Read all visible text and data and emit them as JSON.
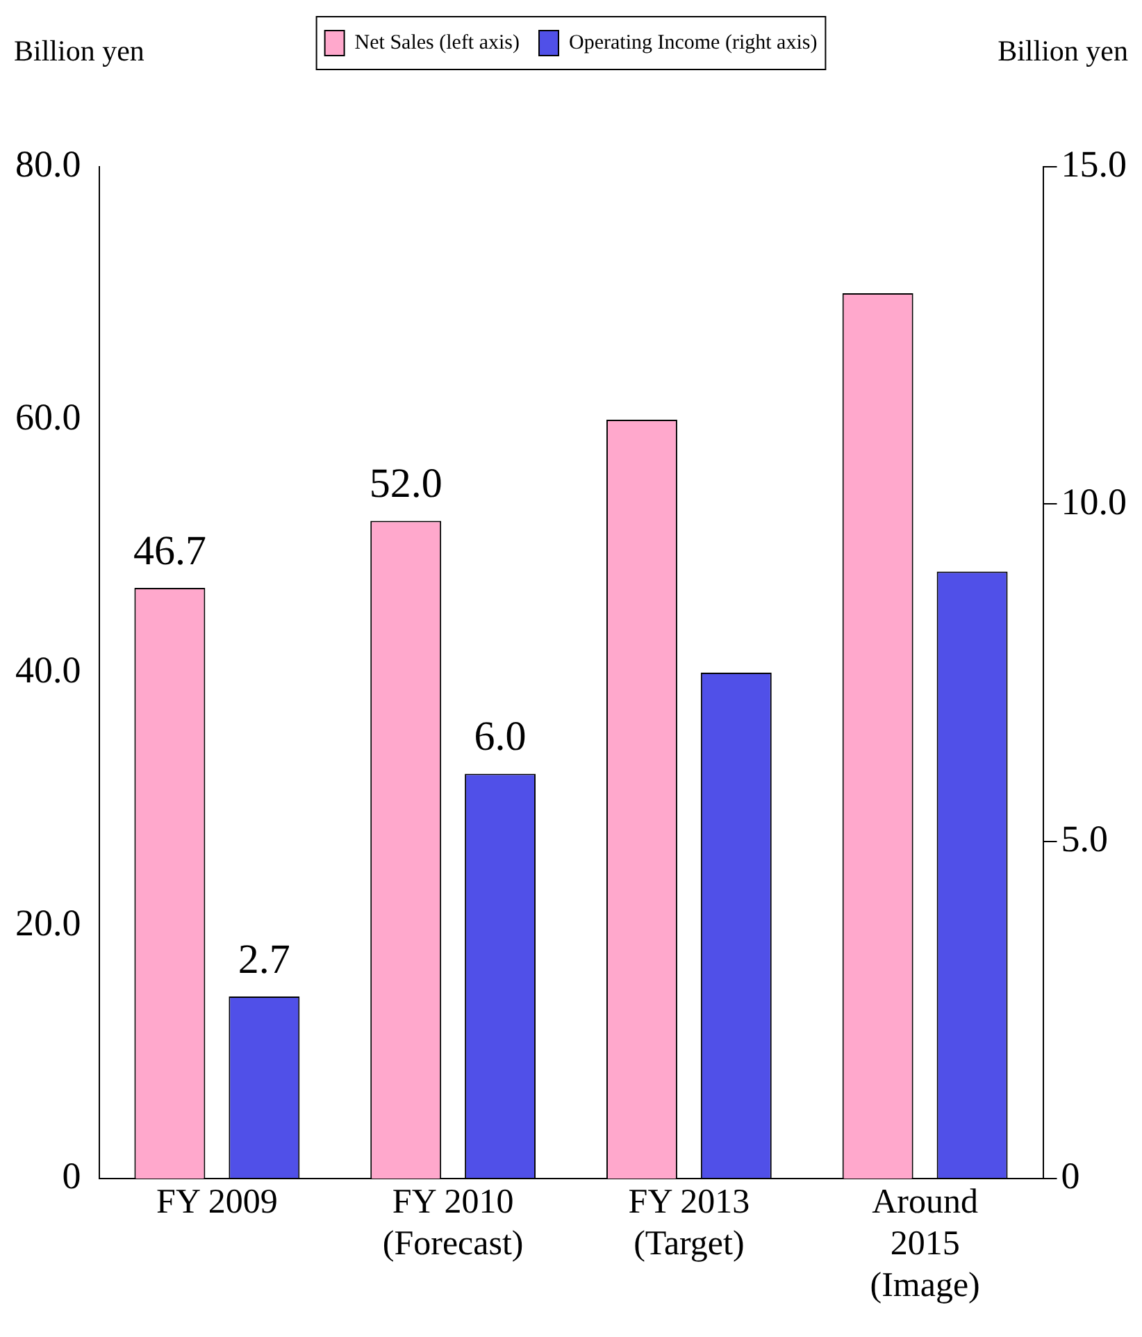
{
  "chart_data": {
    "type": "bar",
    "ylabel": "Billion yen",
    "y2label": "Billion yen",
    "categories": [
      "FY 2009",
      "FY 2010\n(Forecast)",
      "FY 2013\n(Target)",
      "Around\n2015\n(Image)"
    ],
    "series": [
      {
        "name": "Net Sales (left axis)",
        "color": "#ffa8cc",
        "values": [
          46.7,
          52.0,
          60,
          70
        ],
        "value_labels": [
          "46.7",
          "52.0",
          null,
          null
        ]
      },
      {
        "name": "Operating Income (right axis)",
        "color": "#5050e8",
        "axis": "y2",
        "values": [
          2.7,
          6.0,
          7.5,
          9.0
        ],
        "value_labels": [
          "2.7",
          "6.0",
          null,
          null
        ]
      }
    ],
    "ylim": [
      0,
      80
    ],
    "yticks": [
      {
        "value": 0,
        "label": "0"
      },
      {
        "value": 20,
        "label": "20.0"
      },
      {
        "value": 40,
        "label": "40.0"
      },
      {
        "value": 60,
        "label": "60.0"
      },
      {
        "value": 80,
        "label": "80.0"
      }
    ],
    "y2lim": [
      0,
      15
    ],
    "y2ticks": [
      {
        "value": 0,
        "label": "0"
      },
      {
        "value": 5,
        "label": "5.0"
      },
      {
        "value": 10,
        "label": "10.0"
      },
      {
        "value": 15,
        "label": "15.0"
      }
    ],
    "grid": false,
    "legend": "top"
  }
}
